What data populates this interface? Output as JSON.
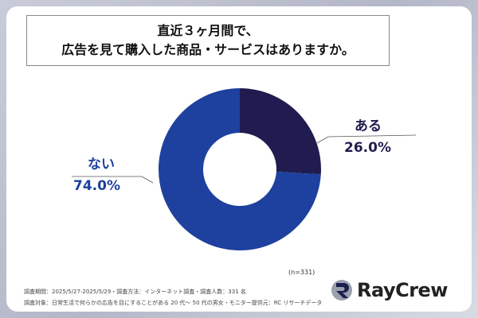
{
  "title": [
    "直近３ヶ月間で、",
    "広告を見て購入した商品・サービスはありますか。"
  ],
  "chart_data": {
    "type": "pie",
    "donut": true,
    "categories": [
      "ある",
      "ない"
    ],
    "values": [
      26.0,
      74.0
    ],
    "labels": [
      "26.0%",
      "74.0%"
    ],
    "colors": [
      "#201c4f",
      "#1e409e"
    ]
  },
  "sample": "(n=331)",
  "footnotes": [
    "調査期間：2025/5/27-2025/5/29・調査方法：インターネット調査・調査人数：331 名",
    "調査対象：日常生活で何らかの広告を目にすることがある 20 代～ 50 代の男女・モニター提供元：RC リサーチデータ"
  ],
  "logo": "RayCrew"
}
